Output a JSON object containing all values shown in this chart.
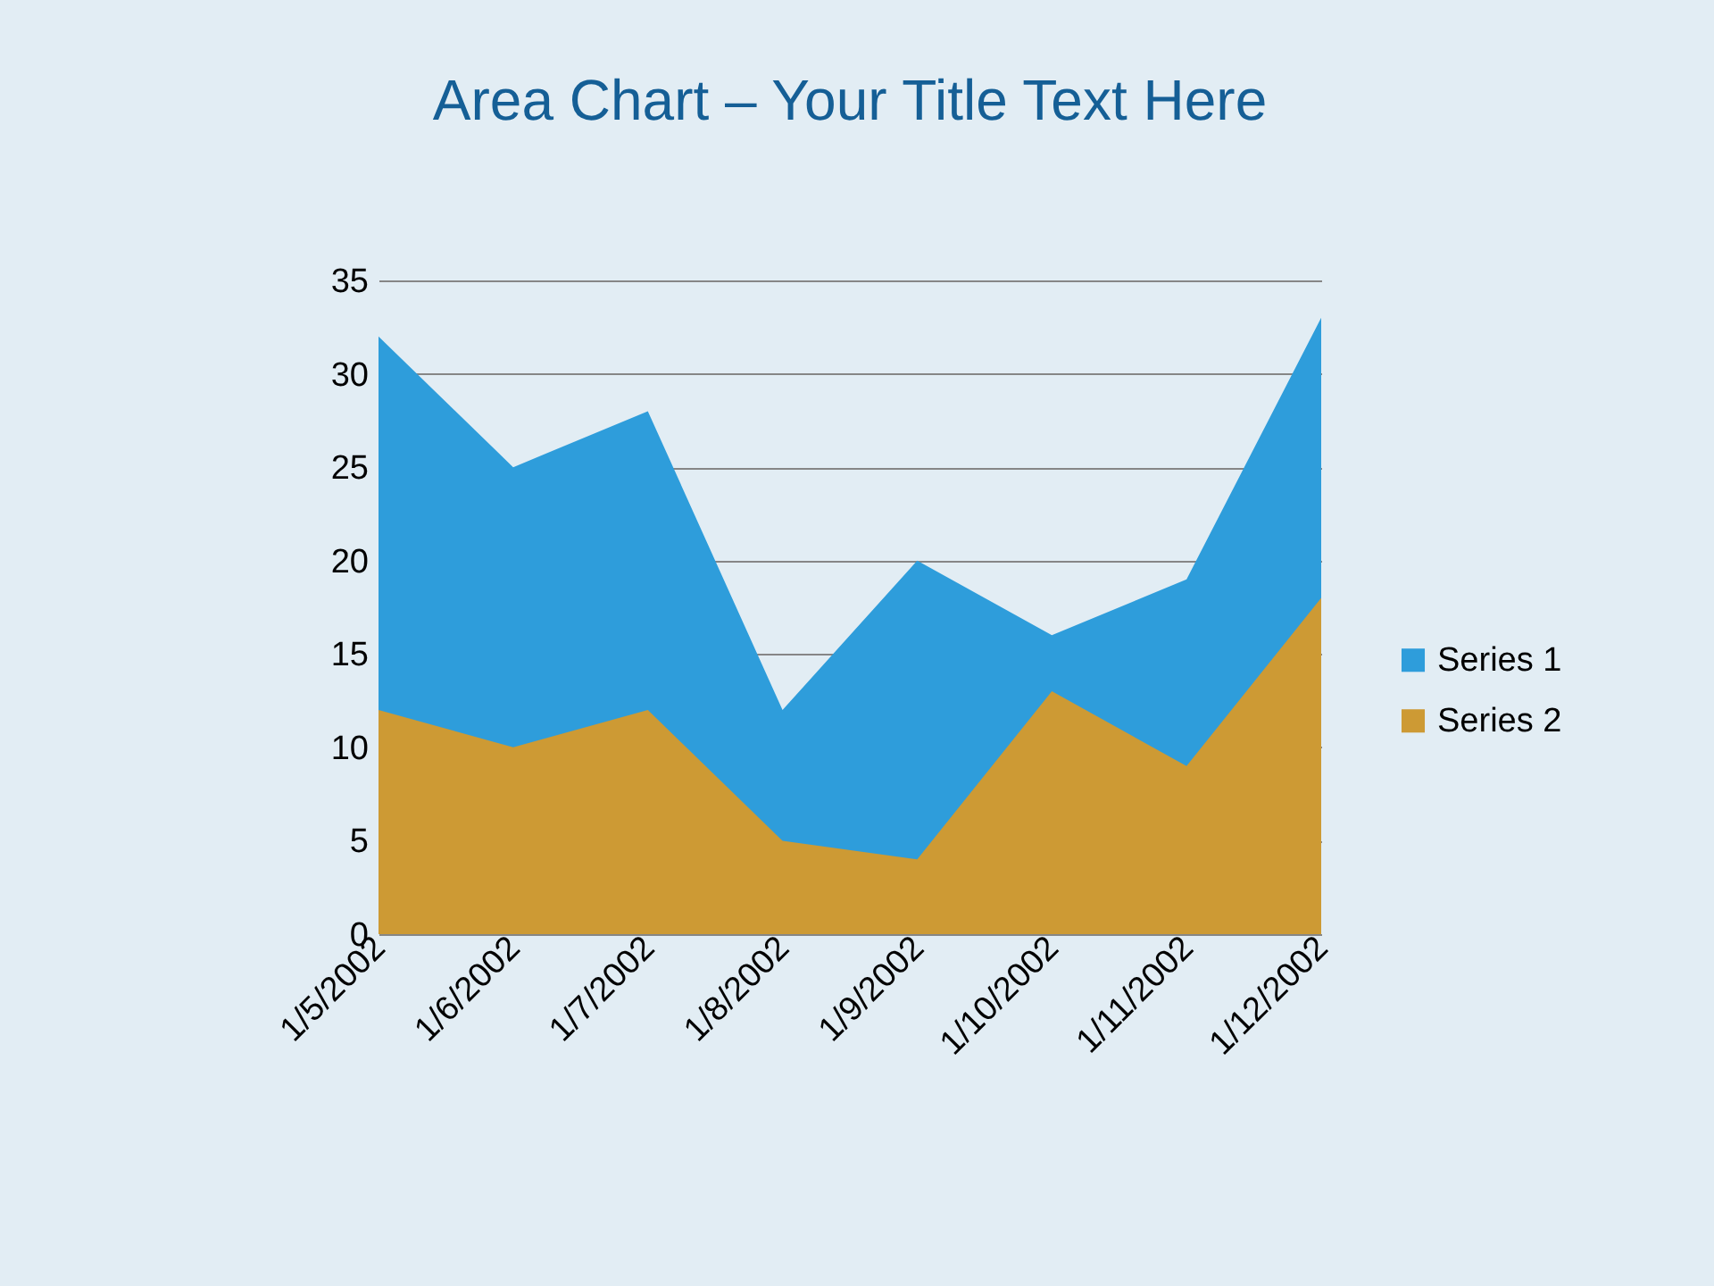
{
  "chart_data": {
    "type": "area",
    "title": "Area Chart – Your Title Text Here",
    "categories": [
      "1/5/2002",
      "1/6/2002",
      "1/7/2002",
      "1/8/2002",
      "1/9/2002",
      "1/10/2002",
      "1/11/2002",
      "1/12/2002"
    ],
    "series": [
      {
        "name": "Series 1",
        "color": "#2e9ddb",
        "values": [
          32,
          25,
          28,
          12,
          20,
          16,
          19,
          33
        ]
      },
      {
        "name": "Series 2",
        "color": "#cd9a34",
        "values": [
          12,
          10,
          12,
          5,
          4,
          13,
          9,
          18
        ]
      }
    ],
    "ylim": [
      0,
      35
    ],
    "yticks": [
      0,
      5,
      10,
      15,
      20,
      25,
      30,
      35
    ],
    "grid": "y",
    "legend": "right"
  }
}
